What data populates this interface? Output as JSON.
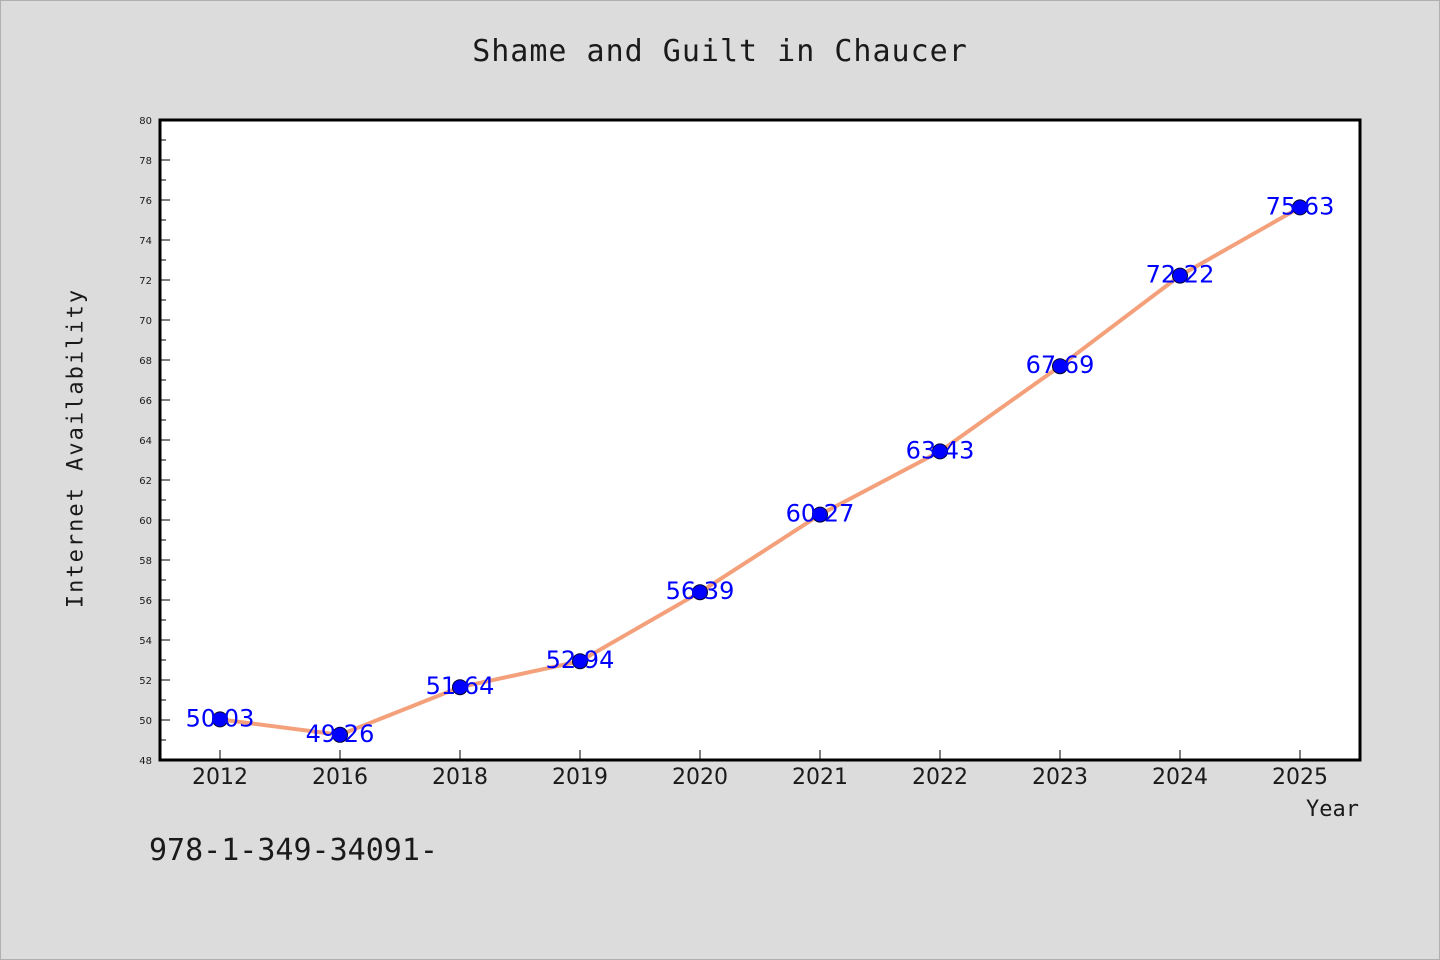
{
  "chart_data": {
    "type": "line",
    "title": "Shame and Guilt in Chaucer",
    "xlabel": "Year",
    "ylabel": "Internet Availability",
    "categories": [
      "2012",
      "2016",
      "2018",
      "2019",
      "2020",
      "2021",
      "2022",
      "2023",
      "2024",
      "2025"
    ],
    "series": [
      {
        "values": [
          50.03,
          49.26,
          51.64,
          52.94,
          56.39,
          60.27,
          63.43,
          67.69,
          72.22,
          75.63
        ]
      }
    ],
    "data_labels": [
      "50.03",
      "49.26",
      "51.64",
      "52.94",
      "56.39",
      "60.27",
      "63.43",
      "67.69",
      "72.22",
      "75.63"
    ],
    "ylim": [
      48,
      80
    ],
    "y_ticks": [
      "48",
      "50",
      "52",
      "54",
      "56",
      "58",
      "60",
      "62",
      "64",
      "66",
      "68",
      "70",
      "72",
      "74",
      "76",
      "78",
      "80"
    ],
    "grid": false,
    "legend": "none",
    "colors": {
      "line": "#f4a07a",
      "marker": "#0000ff",
      "label": "#0000ff",
      "background": "#dcdcdc",
      "plot_background": "#ffffff"
    }
  },
  "footer": {
    "code": "978-1-349-34091-"
  }
}
